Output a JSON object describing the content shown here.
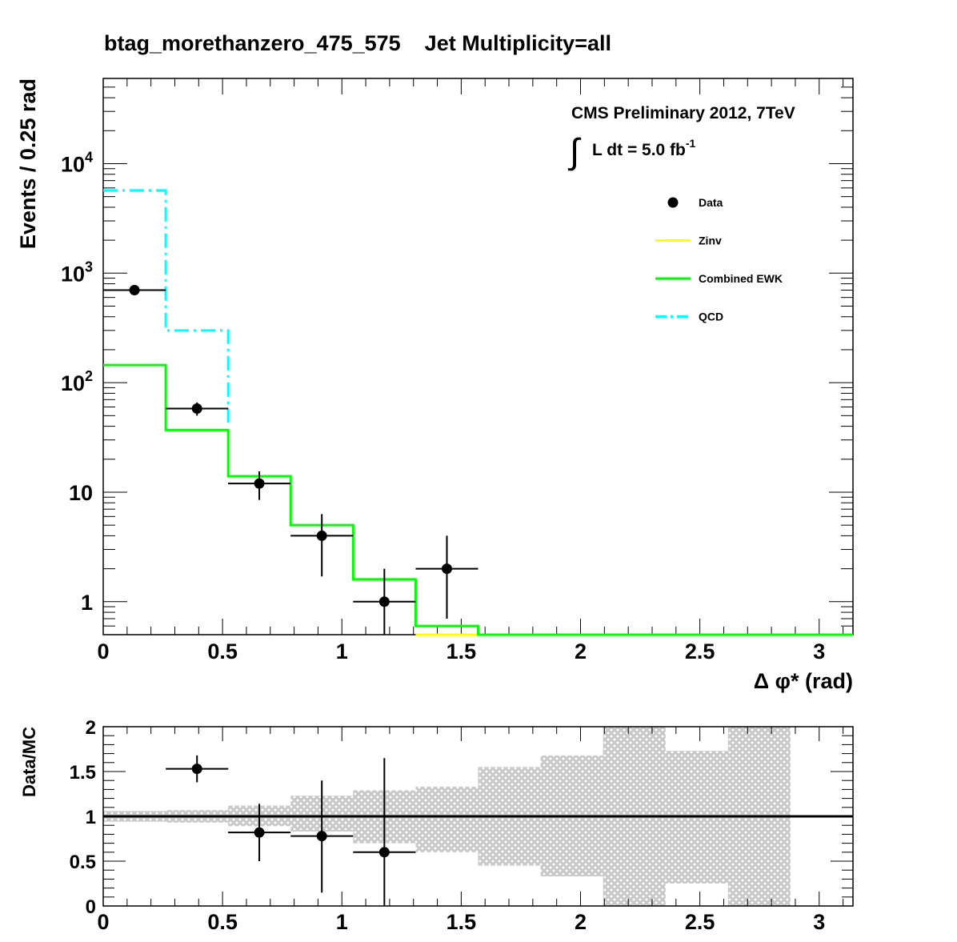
{
  "chart_data": [
    {
      "type": "line",
      "title": "btag_morethanzero_475_575    Jet Multiplicity=all",
      "xlabel": "Δ φ* (rad)",
      "ylabel": "Events / 0.25 rad",
      "xlim": [
        0,
        3.1416
      ],
      "ylim": [
        0.5,
        60000
      ],
      "yscale": "log",
      "bin_width": 0.2618,
      "x_ticks": [
        "0",
        "0.5",
        "1",
        "1.5",
        "2",
        "2.5",
        "3"
      ],
      "y_tick_labels": [
        {
          "base": "10",
          "exp": "4",
          "value": 10000
        },
        {
          "base": "10",
          "exp": "3",
          "value": 1000
        },
        {
          "base": "10",
          "exp": "2",
          "value": 100
        },
        {
          "base": "10",
          "exp": "",
          "value": 10
        },
        {
          "base": "1",
          "exp": "",
          "value": 1
        }
      ],
      "annotations": {
        "cms_label": "CMS Preliminary 2012, 7TeV",
        "lumi_integral": "∫",
        "lumi_text": "L dt = 5.0 fb",
        "lumi_exp": "-1"
      },
      "legend": {
        "placement": "top-right",
        "entries": [
          {
            "name": "Data",
            "style": "marker",
            "color": "#000000"
          },
          {
            "name": "Zinv",
            "style": "line",
            "color": "#ffff00"
          },
          {
            "name": "Combined EWK",
            "style": "line",
            "color": "#00ff00"
          },
          {
            "name": "QCD",
            "style": "dashdot",
            "color": "#00ffff"
          }
        ]
      },
      "series": [
        {
          "name": "Data",
          "kind": "points",
          "x": [
            0.131,
            0.393,
            0.654,
            0.916,
            1.178,
            1.44
          ],
          "values": [
            700,
            58,
            12,
            4,
            1,
            2
          ],
          "err_low": [
            27,
            8,
            3.5,
            2.3,
            1,
            1.3
          ],
          "err_high": [
            27,
            8,
            3.5,
            2.3,
            1,
            2
          ],
          "x_half_width": 0.1309
        },
        {
          "name": "Combined EWK",
          "kind": "step",
          "color": "#00ff00",
          "edges": [
            0,
            0.2618,
            0.5236,
            0.7854,
            1.0472,
            1.309,
            1.5708,
            3.1416
          ],
          "values": [
            145,
            37,
            14,
            5,
            1.6,
            0.6,
            0.5
          ]
        },
        {
          "name": "QCD",
          "kind": "step",
          "color": "#00ffff",
          "edges": [
            0,
            0.2618,
            0.5236
          ],
          "values": [
            5700,
            300
          ]
        },
        {
          "name": "Zinv",
          "kind": "step",
          "color": "#ffff00",
          "edges": [
            1.309,
            1.5708
          ],
          "values": [
            0.5
          ]
        }
      ]
    },
    {
      "type": "scatter",
      "ylabel": "Data/MC",
      "xlim": [
        0,
        3.1416
      ],
      "ylim": [
        0,
        2
      ],
      "x_ticks": [
        "0",
        "0.5",
        "1",
        "1.5",
        "2",
        "2.5",
        "3"
      ],
      "y_ticks": [
        "0",
        "0.5",
        "1",
        "1.5",
        "2"
      ],
      "reference_line": 1,
      "uncertainty_band": {
        "color": "#c8c8c8",
        "edges": [
          0,
          0.2618,
          0.5236,
          0.7854,
          1.0472,
          1.309,
          1.5708,
          1.8326,
          2.0944,
          2.3562,
          2.618,
          2.8798
        ],
        "low": [
          0.94,
          0.93,
          0.89,
          0.83,
          0.7,
          0.6,
          0.45,
          0.33,
          0,
          0.25,
          0
        ],
        "high": [
          1.06,
          1.07,
          1.12,
          1.23,
          1.29,
          1.33,
          1.55,
          1.68,
          2.0,
          1.73,
          2.0
        ]
      },
      "points": {
        "x": [
          0.393,
          0.654,
          0.916,
          1.178
        ],
        "values": [
          1.53,
          0.82,
          0.78,
          0.6
        ],
        "err_low": [
          0.15,
          0.32,
          0.63,
          0.6
        ],
        "err_high": [
          0.15,
          0.32,
          0.62,
          1.05
        ],
        "x_half_width": 0.1309
      }
    }
  ]
}
